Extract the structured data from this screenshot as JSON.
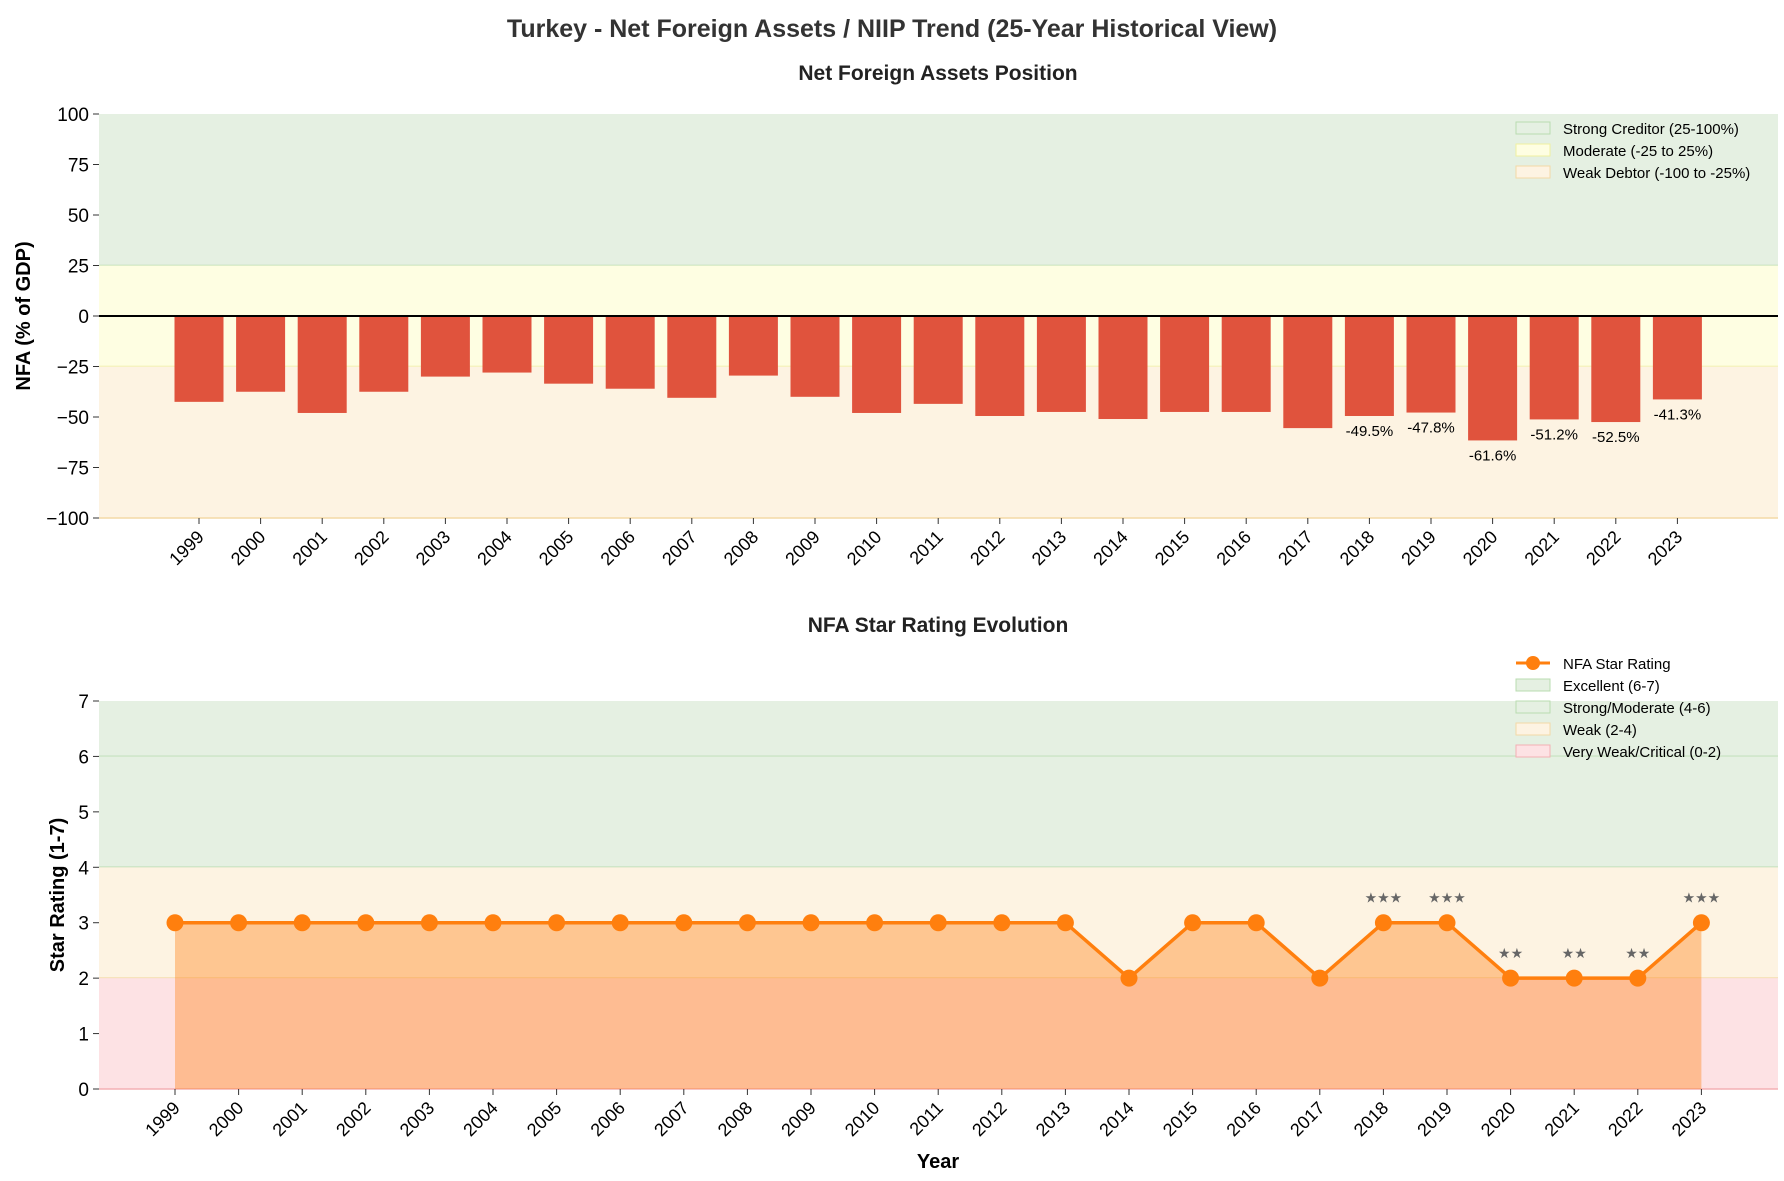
{
  "title": "Turkey - Net Foreign Assets / NIIP Trend (25-Year Historical View)",
  "colors": {
    "bar": "#e0533d",
    "line": "#ff7f0e",
    "fill": "#ffb27a",
    "green": "#e5f0e2",
    "yellow": "#fefee2",
    "orange": "#fdf3e2",
    "pink": "#fde2e4"
  },
  "chart_data": [
    {
      "type": "bar",
      "title": "Net Foreign Assets Position",
      "ylabel": "NFA (% of GDP)",
      "xlabel": "",
      "ylim": [
        -100,
        100
      ],
      "yticks": [
        -100,
        -75,
        -50,
        -25,
        0,
        25,
        50,
        75,
        100
      ],
      "categories": [
        "1999",
        "2000",
        "2001",
        "2002",
        "2003",
        "2004",
        "2005",
        "2006",
        "2007",
        "2008",
        "2009",
        "2010",
        "2011",
        "2012",
        "2013",
        "2014",
        "2015",
        "2016",
        "2017",
        "2018",
        "2019",
        "2020",
        "2021",
        "2022",
        "2023"
      ],
      "values": [
        -42.5,
        -37.5,
        -48,
        -37.5,
        -30,
        -28,
        -33.5,
        -36,
        -40.5,
        -29.5,
        -40,
        -48,
        -43.5,
        -49.5,
        -47.5,
        -51,
        -47.5,
        -47.5,
        -55.5,
        -49.5,
        -47.8,
        -61.6,
        -51.2,
        -52.5,
        -41.3
      ],
      "data_labels": {
        "2018": "-49.5%",
        "2019": "-47.8%",
        "2020": "-61.6%",
        "2021": "-51.2%",
        "2022": "-52.5%",
        "2023": "-41.3%"
      },
      "bands": [
        {
          "name": "Strong Creditor (25-100%)",
          "range": [
            25,
            100
          ],
          "color": "#e5f0e2"
        },
        {
          "name": "Moderate (-25 to 25%)",
          "range": [
            -25,
            25
          ],
          "color": "#fefee2"
        },
        {
          "name": "Weak Debtor (-100 to -25%)",
          "range": [
            -100,
            -25
          ],
          "color": "#fdf3e2"
        }
      ],
      "legend": "top-right"
    },
    {
      "type": "line",
      "title": "NFA Star Rating Evolution",
      "ylabel": "Star Rating (1-7)",
      "xlabel": "Year",
      "ylim": [
        0,
        7
      ],
      "yticks": [
        0,
        1,
        2,
        3,
        4,
        5,
        6,
        7
      ],
      "series": [
        {
          "name": "NFA Star Rating",
          "values": [
            3,
            3,
            3,
            3,
            3,
            3,
            3,
            3,
            3,
            3,
            3,
            3,
            3,
            3,
            3,
            2,
            3,
            3,
            2,
            3,
            3,
            2,
            2,
            2,
            3
          ]
        }
      ],
      "data_labels": {
        "2018": "★★★",
        "2019": "★★★",
        "2020": "★★",
        "2021": "★★",
        "2022": "★★",
        "2023": "★★★"
      },
      "bands": [
        {
          "name": "Excellent (6-7)",
          "range": [
            6,
            7
          ],
          "color": "#e5f0e2"
        },
        {
          "name": "Strong/Moderate (4-6)",
          "range": [
            4,
            6
          ],
          "color": "#e5f0e2"
        },
        {
          "name": "Weak (2-4)",
          "range": [
            2,
            4
          ],
          "color": "#fdf3e2"
        },
        {
          "name": "Very Weak/Critical (0-2)",
          "range": [
            0,
            2
          ],
          "color": "#fde2e4"
        }
      ],
      "legend": "top-right"
    }
  ]
}
